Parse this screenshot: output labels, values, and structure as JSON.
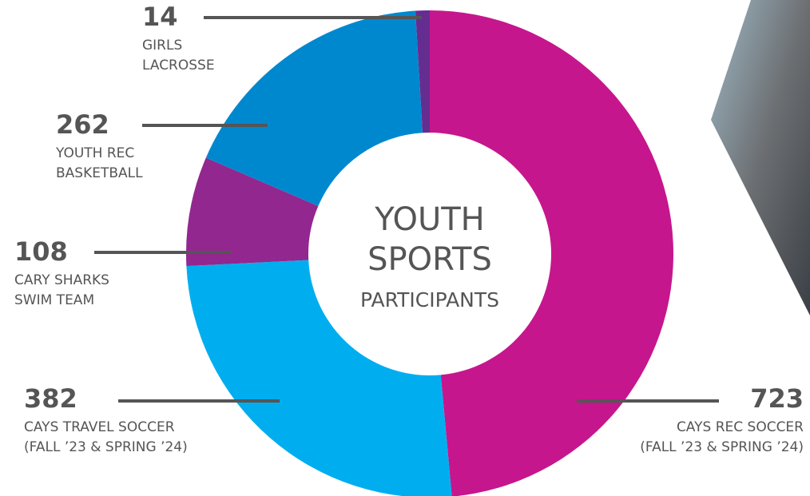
{
  "chart_data": {
    "type": "donut",
    "title": [
      "YOUTH",
      "SPORTS"
    ],
    "subtitle": "PARTICIPANTS",
    "categories": [
      [
        "CAYS REC SOCCER",
        "(FALL ’23 & SPRING ’24)"
      ],
      [
        "CAYS TRAVEL SOCCER",
        "(FALL ’23 & SPRING ’24)"
      ],
      [
        "CARY SHARKS",
        "SWIM TEAM"
      ],
      [
        "YOUTH REC",
        "BASKETBALL"
      ],
      [
        "GIRLS",
        "LACROSSE"
      ]
    ],
    "values": [
      723,
      382,
      108,
      262,
      14
    ],
    "colors": [
      "#c6168d",
      "#00aeef",
      "#92278f",
      "#0088cf",
      "#662d91"
    ]
  }
}
